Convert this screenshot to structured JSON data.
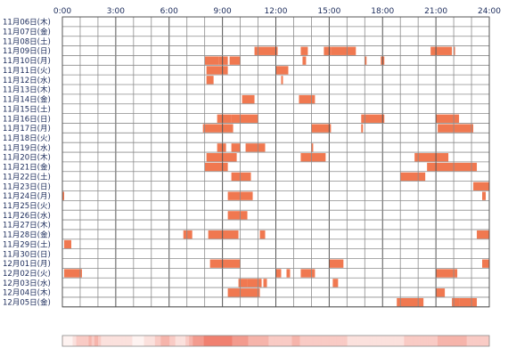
{
  "chart_data": {
    "type": "heatmap",
    "title": "",
    "xlabel": "",
    "ylabel": "",
    "x_range_hours": [
      0,
      24
    ],
    "x_ticks": [
      "0:00",
      "3:00",
      "6:00",
      "9:00",
      "12:00",
      "15:00",
      "18:00",
      "21:00",
      "24:00"
    ],
    "rows": [
      {
        "label": "11月06日(木)",
        "segments": []
      },
      {
        "label": "11月07日(金)",
        "segments": []
      },
      {
        "label": "11月08日(土)",
        "segments": []
      },
      {
        "label": "11月09日(日)",
        "segments": [
          [
            10.8,
            12.1
          ],
          [
            13.4,
            13.8
          ],
          [
            14.7,
            15.1
          ],
          [
            15.1,
            16.5
          ],
          [
            20.7,
            21.9
          ],
          [
            22.0,
            22.05
          ]
        ]
      },
      {
        "label": "11月10日(月)",
        "segments": [
          [
            8.0,
            8.8
          ],
          [
            8.8,
            9.3
          ],
          [
            9.4,
            10.0
          ],
          [
            13.5,
            13.7
          ],
          [
            17.0,
            17.1
          ],
          [
            17.9,
            18.1
          ]
        ]
      },
      {
        "label": "11月11日(火)",
        "segments": [
          [
            8.1,
            9.3
          ],
          [
            12.0,
            12.7
          ]
        ]
      },
      {
        "label": "11月12日(水)",
        "segments": [
          [
            8.1,
            8.5
          ],
          [
            12.3,
            12.4
          ]
        ]
      },
      {
        "label": "11月13日(木)",
        "segments": []
      },
      {
        "label": "11月14日(金)",
        "segments": [
          [
            10.1,
            10.8
          ],
          [
            13.3,
            14.2
          ]
        ]
      },
      {
        "label": "11月15日(土)",
        "segments": []
      },
      {
        "label": "11月16日(日)",
        "segments": [
          [
            8.7,
            9.5
          ],
          [
            9.5,
            11.0
          ],
          [
            16.8,
            18.1
          ],
          [
            21.0,
            22.3
          ]
        ]
      },
      {
        "label": "11月17日(月)",
        "segments": [
          [
            7.9,
            9.6
          ],
          [
            14.0,
            15.1
          ],
          [
            16.8,
            16.9
          ],
          [
            21.1,
            23.1
          ]
        ]
      },
      {
        "label": "11月18日(火)",
        "segments": []
      },
      {
        "label": "11月19日(水)",
        "segments": [
          [
            8.7,
            9.2
          ],
          [
            9.5,
            10.0
          ],
          [
            10.3,
            11.4
          ],
          [
            14.0,
            14.1
          ]
        ]
      },
      {
        "label": "11月20日(木)",
        "segments": [
          [
            8.1,
            9.8
          ],
          [
            13.4,
            14.8
          ],
          [
            19.8,
            21.7
          ]
        ]
      },
      {
        "label": "11月21日(金)",
        "segments": [
          [
            8.0,
            9.3
          ],
          [
            20.5,
            23.3
          ]
        ]
      },
      {
        "label": "11月22日(土)",
        "segments": [
          [
            9.5,
            10.6
          ],
          [
            19.0,
            20.4
          ]
        ]
      },
      {
        "label": "11月23日(日)",
        "segments": [
          [
            23.1,
            24.0
          ]
        ]
      },
      {
        "label": "11月24日(月)",
        "segments": [
          [
            0.0,
            0.1
          ],
          [
            9.3,
            10.7
          ],
          [
            23.6,
            23.8
          ]
        ]
      },
      {
        "label": "11月25日(火)",
        "segments": []
      },
      {
        "label": "11月26日(水)",
        "segments": [
          [
            9.3,
            10.4
          ]
        ]
      },
      {
        "label": "11月27日(木)",
        "segments": []
      },
      {
        "label": "11月28日(金)",
        "segments": [
          [
            6.8,
            7.3
          ],
          [
            8.2,
            9.9
          ],
          [
            11.1,
            11.4
          ],
          [
            23.3,
            24.0
          ]
        ]
      },
      {
        "label": "11月29日(土)",
        "segments": [
          [
            0.1,
            0.5
          ]
        ]
      },
      {
        "label": "11月30日(日)",
        "segments": []
      },
      {
        "label": "12月01日(月)",
        "segments": [
          [
            8.3,
            10.0
          ],
          [
            15.0,
            15.8
          ],
          [
            23.6,
            24.0
          ]
        ]
      },
      {
        "label": "12月02日(火)",
        "segments": [
          [
            0.1,
            1.1
          ],
          [
            12.0,
            12.3
          ],
          [
            12.6,
            12.8
          ],
          [
            13.4,
            14.2
          ],
          [
            21.0,
            22.2
          ]
        ]
      },
      {
        "label": "12月03日(水)",
        "segments": [
          [
            9.9,
            10.4
          ],
          [
            10.4,
            11.2
          ],
          [
            11.3,
            11.5
          ],
          [
            15.2,
            15.5
          ]
        ]
      },
      {
        "label": "12月04日(木)",
        "segments": [
          [
            9.3,
            11.1
          ],
          [
            21.0,
            21.5
          ]
        ]
      },
      {
        "label": "12月05日(金)",
        "segments": [
          [
            18.8,
            20.3
          ],
          [
            21.9,
            22.3
          ],
          [
            22.3,
            23.3
          ]
        ]
      }
    ],
    "density": [
      2,
      1,
      1,
      1,
      1,
      1,
      1,
      1,
      1,
      1,
      1,
      1,
      1,
      1,
      2,
      2,
      2,
      2,
      2,
      3,
      3,
      3,
      3,
      3,
      3,
      3,
      3,
      3,
      3,
      3,
      3,
      3,
      3,
      3,
      3,
      3,
      4,
      4,
      4,
      4,
      3,
      3,
      3,
      3,
      4,
      4,
      4,
      4,
      4,
      3,
      3,
      3,
      3,
      2,
      2,
      2,
      2,
      2,
      2,
      2,
      2,
      2,
      2,
      2,
      2,
      2,
      2,
      2,
      2,
      2,
      2,
      2,
      2,
      2,
      2,
      2,
      2,
      2,
      2,
      2,
      2,
      2,
      2,
      2,
      2,
      2,
      2,
      2,
      2,
      2,
      2,
      2,
      2,
      2,
      2,
      2,
      1,
      1,
      1,
      1,
      1,
      1,
      1,
      1,
      1,
      1,
      1,
      1,
      1,
      1,
      1,
      1,
      2,
      2,
      2,
      2,
      2,
      2,
      2,
      2,
      2,
      2,
      2,
      2,
      2,
      2,
      2,
      3,
      3,
      3,
      3,
      3,
      3,
      3,
      3,
      4,
      4,
      4,
      4,
      4,
      4,
      4,
      4,
      4,
      4,
      4,
      4,
      3,
      3,
      3,
      3,
      3,
      3,
      3,
      3,
      2,
      2,
      2,
      2,
      2,
      2,
      2,
      2,
      2,
      2,
      2,
      2,
      2,
      2,
      3,
      3,
      3,
      3,
      3,
      4,
      4,
      4,
      4,
      4,
      5,
      5,
      5,
      5,
      5,
      5,
      5,
      5,
      5,
      5,
      5,
      5,
      5,
      5,
      5,
      6,
      6,
      6,
      6,
      6,
      6,
      6,
      6,
      6,
      6,
      6,
      6,
      6,
      6,
      6,
      6,
      6,
      6,
      6,
      6,
      6,
      6,
      6,
      6,
      6,
      6,
      6,
      6,
      6,
      6,
      6,
      6,
      6,
      6,
      6,
      6,
      6,
      6,
      6,
      5,
      5,
      5,
      5,
      5,
      5,
      5,
      5,
      5,
      5,
      5,
      5,
      5,
      5,
      5,
      5,
      5,
      5,
      5,
      5,
      5,
      5,
      4,
      4,
      4,
      4,
      4,
      4,
      4,
      4,
      4,
      4,
      4,
      4,
      4,
      4,
      4,
      4,
      4,
      4,
      4,
      4,
      4,
      4,
      4,
      4,
      4,
      4,
      4,
      4,
      3,
      3,
      3,
      3,
      3,
      3,
      3,
      3,
      3,
      3,
      3,
      3,
      3,
      3,
      3,
      3,
      3,
      3,
      3,
      3,
      3,
      3,
      3,
      3,
      3,
      3,
      3,
      3,
      3,
      3,
      3,
      3,
      4,
      4,
      4,
      4,
      4,
      4,
      4,
      4,
      4,
      4,
      4,
      3,
      3,
      3,
      3,
      3,
      3,
      3,
      3,
      3,
      3,
      3,
      3,
      3,
      3,
      3,
      3,
      3,
      3,
      3,
      3,
      3,
      3,
      3,
      3,
      3,
      3,
      3,
      3,
      3,
      3,
      3,
      3,
      3,
      3,
      3,
      3,
      3,
      3,
      3,
      3,
      3,
      3,
      3,
      3,
      3,
      3,
      3,
      3,
      3,
      3,
      3,
      3,
      3,
      3,
      3,
      3,
      3,
      3,
      3,
      3,
      3,
      3,
      3,
      3,
      3,
      2,
      2,
      2,
      2,
      2,
      2,
      2,
      2,
      2,
      2,
      2,
      2,
      2,
      2,
      2,
      2,
      2,
      2,
      2,
      2,
      2,
      2,
      2,
      2,
      2,
      2,
      2,
      2,
      2,
      2,
      2,
      2,
      2,
      2,
      2,
      2,
      2,
      2,
      2,
      2,
      2,
      2,
      2,
      2,
      2,
      2,
      2,
      2,
      2,
      2,
      2,
      2,
      2,
      2,
      2,
      2,
      2,
      2,
      2,
      2,
      2,
      2,
      2,
      2,
      2,
      2,
      2,
      2,
      2,
      2,
      2,
      2,
      2,
      2,
      2,
      2,
      2,
      2,
      3,
      3,
      3,
      3,
      3,
      3,
      3,
      3,
      3,
      3,
      3,
      3,
      3,
      3,
      3,
      3,
      3,
      3,
      3,
      3,
      3,
      3,
      3,
      3,
      3,
      3,
      3,
      3,
      3,
      3,
      3,
      3,
      3,
      3,
      3,
      3,
      3,
      3,
      3,
      3,
      3,
      3,
      3,
      3,
      3,
      3,
      4,
      4,
      4,
      4,
      4,
      4,
      4,
      4,
      4,
      4,
      4,
      4,
      4,
      4,
      4,
      4,
      4,
      4,
      4,
      4,
      4,
      4,
      4,
      4,
      4,
      4,
      4,
      4,
      4,
      4,
      4,
      4,
      4,
      4,
      4,
      4,
      4,
      4,
      4,
      4,
      3,
      3,
      3,
      3,
      3,
      3,
      3,
      3,
      3,
      3,
      3,
      3,
      3,
      3,
      3,
      3,
      3,
      3,
      3,
      3,
      3,
      3,
      3,
      3,
      3,
      3,
      3,
      3,
      3,
      3,
      3
    ],
    "colors": {
      "segment": "#f07850",
      "segment_light": "#ff9a6a",
      "grid_line": "#8c8c8c",
      "grid_border": "#555555",
      "label_text": "#1a2a5a",
      "density_high": "#f08070",
      "density_low": "#ffffff"
    }
  }
}
